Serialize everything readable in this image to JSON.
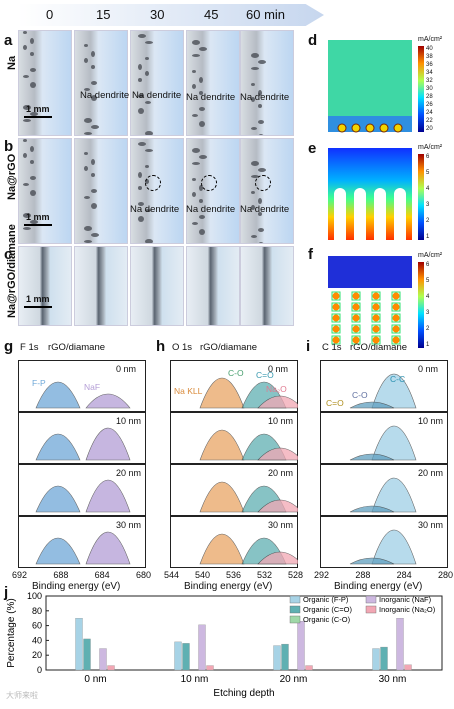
{
  "time_axis": {
    "labels": [
      "0",
      "15",
      "30",
      "45",
      "60 min"
    ]
  },
  "panels": {
    "a": {
      "letter": "a",
      "label": "Na",
      "annotation": "Na dendrite",
      "scalebar": "1 mm"
    },
    "b": {
      "letter": "b",
      "label": "Na@rGO",
      "annotation": "Na dendrite",
      "scalebar": "1 mm"
    },
    "c": {
      "letter": "c",
      "label": "Na@rGO/diamane",
      "scalebar": "1 mm"
    },
    "d": {
      "letter": "d",
      "unit": "mA/cm²",
      "ticks": [
        "40",
        "38",
        "36",
        "34",
        "32",
        "30",
        "28",
        "26",
        "24",
        "22",
        "20"
      ]
    },
    "e": {
      "letter": "e",
      "unit": "mA/cm²",
      "ticks": [
        "6",
        "5",
        "4",
        "3",
        "2",
        "1"
      ]
    },
    "f": {
      "letter": "f",
      "unit": "mA/cm²",
      "ticks": [
        "6",
        "5",
        "4",
        "3",
        "2",
        "1"
      ]
    }
  },
  "xps": [
    {
      "letter": "g",
      "element": "F 1s",
      "sample": "rGO/diamane",
      "depths": [
        "0 nm",
        "10 nm",
        "20 nm",
        "30 nm"
      ],
      "peaks": [
        "F-P",
        "NaF"
      ],
      "xticks": [
        "692",
        "688",
        "684",
        "680"
      ],
      "xlabel": "Binding energy (eV)"
    },
    {
      "letter": "h",
      "element": "O 1s",
      "sample": "rGO/diamane",
      "depths": [
        "0 nm",
        "10 nm",
        "20 nm",
        "30 nm"
      ],
      "peaks": [
        "Na KLL",
        "C-O",
        "C=O",
        "Na₂O"
      ],
      "xticks": [
        "544",
        "540",
        "536",
        "532",
        "528"
      ],
      "xlabel": "Binding energy (eV)"
    },
    {
      "letter": "i",
      "element": "C 1s",
      "sample": "rGO/diamane",
      "depths": [
        "0 nm",
        "10 nm",
        "20 nm",
        "30 nm"
      ],
      "peaks": [
        "C=O",
        "C-O",
        "C-C"
      ],
      "xticks": [
        "292",
        "288",
        "284",
        "280"
      ],
      "xlabel": "Binding energy (eV)"
    }
  ],
  "chart_data": {
    "type": "bar",
    "letter": "j",
    "xlabel": "Etching depth",
    "ylabel": "Percentage (%)",
    "ylim": [
      0,
      100
    ],
    "yticks": [
      "0",
      "20",
      "40",
      "60",
      "80",
      "100"
    ],
    "categories": [
      "0 nm",
      "10 nm",
      "20 nm",
      "30 nm"
    ],
    "series": [
      {
        "name": "Organic (F-P)",
        "color": "#a7d3e6",
        "values": [
          70,
          38,
          33,
          29
        ]
      },
      {
        "name": "Organic (C=O)",
        "color": "#5fb0b2",
        "values": [
          42,
          36,
          35,
          31
        ]
      },
      {
        "name": "Organic (C-O)",
        "color": "#9fd8a8",
        "values": [
          0,
          0,
          0,
          0
        ]
      },
      {
        "name": "Inorganic (NaF)",
        "color": "#cdb8e0",
        "values": [
          29,
          61,
          66,
          70
        ]
      },
      {
        "name": "Inorganic (Na₂O)",
        "color": "#f2a7b4",
        "values": [
          6,
          6,
          6,
          7
        ]
      }
    ],
    "legend_position": "top-right"
  },
  "watermark": "大师来啦"
}
